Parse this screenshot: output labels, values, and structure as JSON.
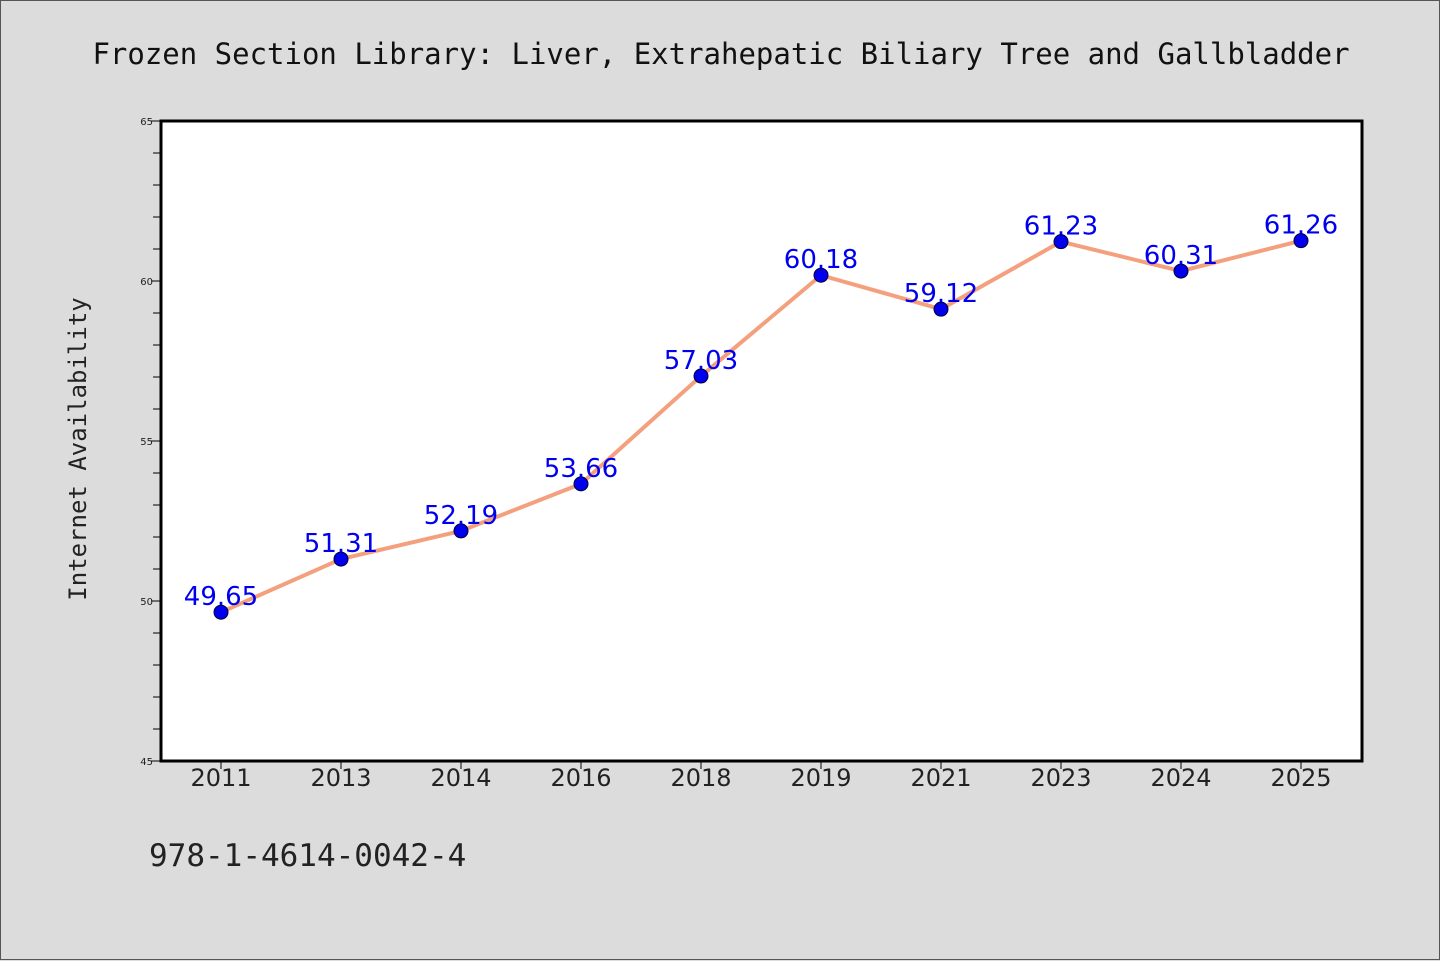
{
  "chart_data": {
    "type": "line",
    "title": "Frozen Section Library: Liver, Extrahepatic Biliary Tree and Gallbladder",
    "xlabel": "",
    "ylabel": "Internet Availability",
    "categories": [
      "2011",
      "2013",
      "2014",
      "2016",
      "2018",
      "2019",
      "2021",
      "2023",
      "2024",
      "2025"
    ],
    "series": [
      {
        "values": [
          49.65,
          51.31,
          52.19,
          53.66,
          57.03,
          60.18,
          59.12,
          61.23,
          60.31,
          61.26
        ],
        "labels": [
          "49.65",
          "51.31",
          "52.19",
          "53.66",
          "57.03",
          "60.18",
          "59.12",
          "61.23",
          "60.31",
          "61.26"
        ]
      }
    ],
    "ylim": [
      45,
      65
    ],
    "yticks": [
      "45",
      "50",
      "55",
      "60",
      "65"
    ],
    "grid": false,
    "legend": "none",
    "colors": {
      "line": "#f4a07e",
      "marker": "#0000ee",
      "data_label": "#0000ee",
      "background": "#dcdcdc",
      "plot_area": "#ffffff"
    }
  },
  "footer": {
    "isbn": "978-1-4614-0042-4"
  }
}
